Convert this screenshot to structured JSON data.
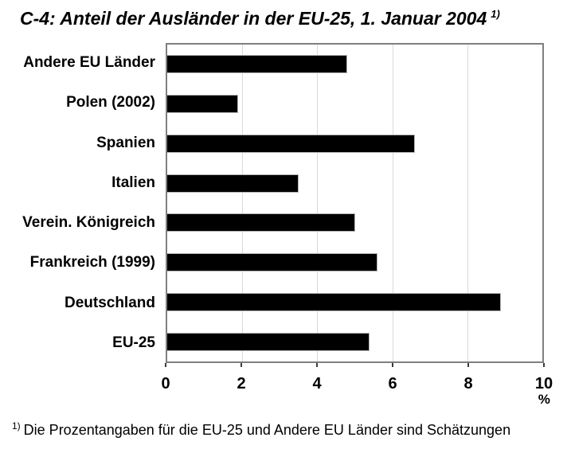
{
  "title": {
    "text": "C-4: Anteil der Ausländer in der EU-25, 1. Januar 2004",
    "superscript": "1)"
  },
  "chart_data": {
    "type": "bar",
    "orientation": "horizontal",
    "title": "C-4: Anteil der Ausländer in der EU-25, 1. Januar 2004 1)",
    "categories": [
      "Andere EU Länder",
      "Polen (2002)",
      "Spanien",
      "Italien",
      "Verein. Königreich",
      "Frankreich (1999)",
      "Deutschland",
      "EU-25"
    ],
    "values": [
      4.8,
      1.9,
      6.6,
      3.5,
      5.0,
      5.6,
      8.9,
      5.4
    ],
    "xlim": [
      0,
      10
    ],
    "xticks": [
      0,
      2,
      4,
      6,
      8,
      10
    ],
    "x_unit": "%",
    "xlabel": "%",
    "ylabel": "",
    "grid": true,
    "legend": "none",
    "bar_color": "#000000"
  },
  "footnote": {
    "superscript": "1)",
    "text": "Die Prozentangaben für die  EU-25 und Andere EU Länder sind Schätzungen"
  }
}
